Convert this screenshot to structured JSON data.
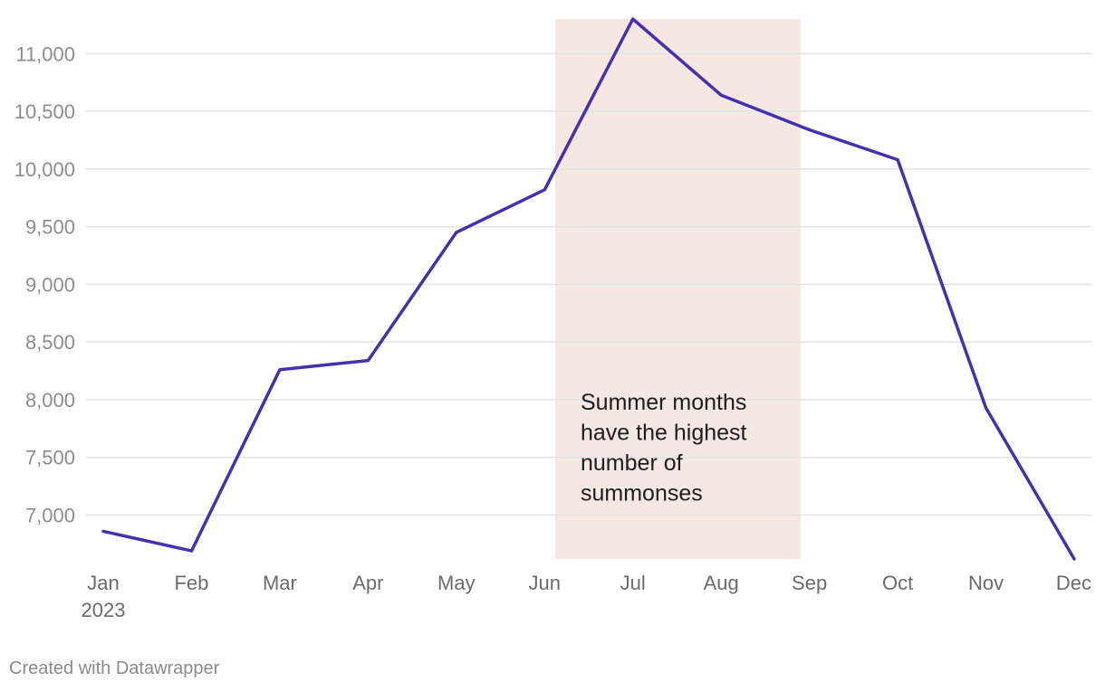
{
  "chart_data": {
    "type": "line",
    "categories": [
      "Jan",
      "Feb",
      "Mar",
      "Apr",
      "May",
      "Jun",
      "Jul",
      "Aug",
      "Sep",
      "Oct",
      "Nov",
      "Dec"
    ],
    "year_label": "2023",
    "series": [
      {
        "values": [
          6860,
          6690,
          8260,
          8340,
          9450,
          9820,
          11300,
          10640,
          10340,
          10080,
          7930,
          6620
        ]
      }
    ],
    "ylim": [
      6620,
      11300
    ],
    "yticks": [
      7000,
      7500,
      8000,
      8500,
      9000,
      9500,
      10000,
      10500,
      11000
    ],
    "ytick_labels": [
      "7,000",
      "7,500",
      "8,000",
      "8,500",
      "9,000",
      "9,500",
      "10,000",
      "10,500",
      "11,000"
    ],
    "grid": true,
    "line_color": "#4730b0",
    "highlight": {
      "x_from": 5.12,
      "x_to": 7.9,
      "color": "#f5e8e3"
    },
    "annotation": {
      "lines": [
        "Summer months",
        "have the highest",
        "number of",
        "summonses"
      ]
    }
  },
  "footer": {
    "credit": "Created with Datawrapper"
  }
}
